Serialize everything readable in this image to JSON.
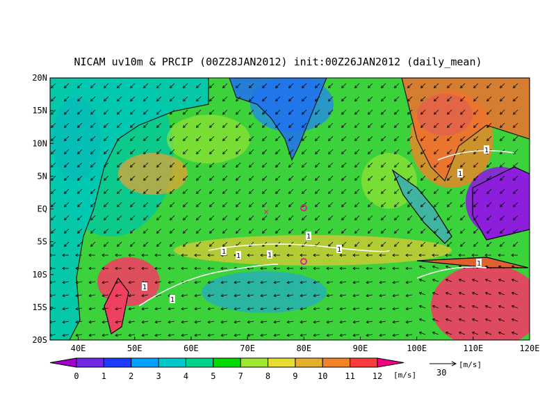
{
  "header": {
    "title": "NICAM uv10m & PRCIP (00Z28JAN2012) init:00Z26JAN2012 (daily_mean)"
  },
  "map": {
    "xlim": [
      35,
      120
    ],
    "ylim": [
      -20,
      20
    ],
    "xticks": [
      {
        "value": 40,
        "label": "40E"
      },
      {
        "value": 50,
        "label": "50E"
      },
      {
        "value": 60,
        "label": "60E"
      },
      {
        "value": 70,
        "label": "70E"
      },
      {
        "value": 80,
        "label": "80E"
      },
      {
        "value": 90,
        "label": "90E"
      },
      {
        "value": 100,
        "label": "100E"
      },
      {
        "value": 110,
        "label": "110E"
      },
      {
        "value": 120,
        "label": "120E"
      }
    ],
    "yticks": [
      {
        "value": 20,
        "label": "20N"
      },
      {
        "value": 15,
        "label": "15N"
      },
      {
        "value": 10,
        "label": "10N"
      },
      {
        "value": 5,
        "label": "5N"
      },
      {
        "value": 0,
        "label": "EQ"
      },
      {
        "value": -5,
        "label": "5S"
      },
      {
        "value": -10,
        "label": "10S"
      },
      {
        "value": -15,
        "label": "15S"
      },
      {
        "value": -20,
        "label": "20S"
      }
    ],
    "contour_labels": [
      "1",
      "1",
      "1",
      "1",
      "1",
      "1",
      "1",
      "1",
      "1",
      "1"
    ]
  },
  "colorbar": {
    "levels": [
      0,
      1,
      2,
      3,
      4,
      5,
      7,
      8,
      9,
      10,
      11,
      12
    ],
    "unit": "[m/s]",
    "colors": [
      "#a000c8",
      "#6e28e6",
      "#1e3cff",
      "#00a0ff",
      "#00c8c8",
      "#00d28c",
      "#00dc00",
      "#a0e632",
      "#e6dc32",
      "#e6af2d",
      "#f08228",
      "#fa3c3c",
      "#f00082"
    ]
  },
  "reference_vector": {
    "value": 30,
    "unit": "[m/s]"
  }
}
